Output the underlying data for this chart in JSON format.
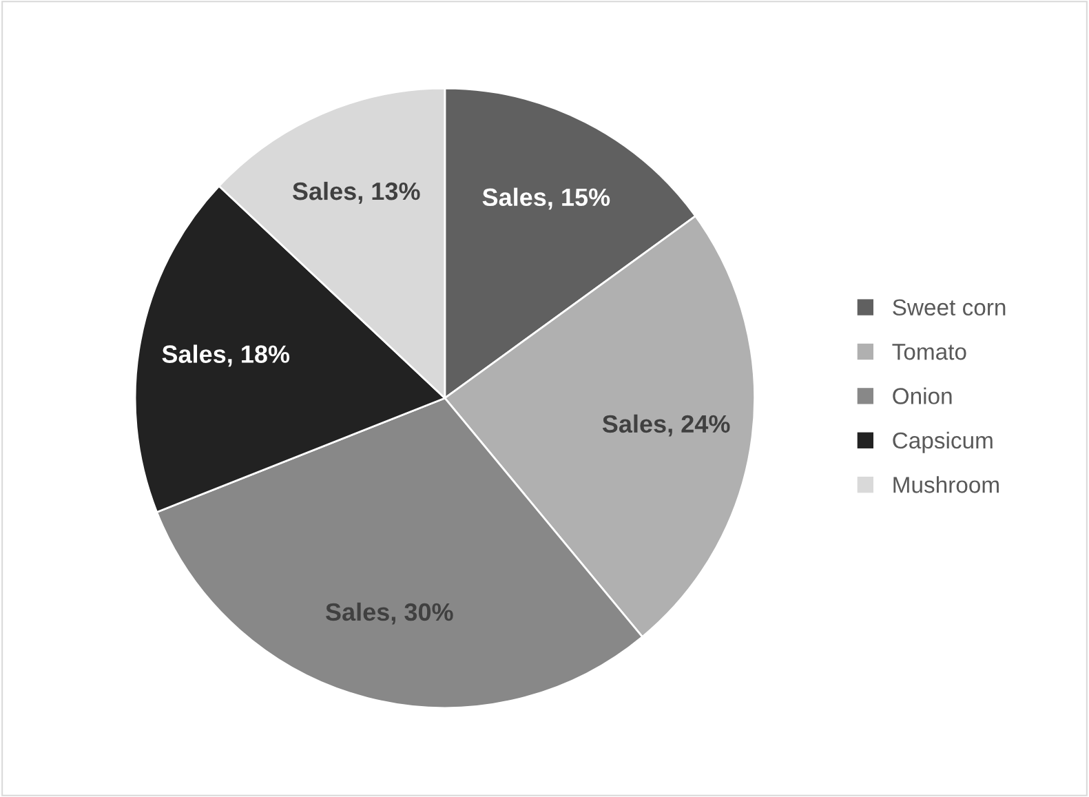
{
  "chart_data": {
    "type": "pie",
    "categories": [
      "Sweet corn",
      "Tomato",
      "Onion",
      "Capsicum",
      "Mushroom"
    ],
    "values": [
      15,
      24,
      30,
      18,
      13
    ],
    "colors": [
      "#606060",
      "#b0b0b0",
      "#888888",
      "#222222",
      "#d9d9d9"
    ],
    "value_labels": [
      "Sales, 15%",
      "Sales, 24%",
      "Sales, 30%",
      "Sales, 18%",
      "Sales, 13%"
    ],
    "legend": "right"
  }
}
